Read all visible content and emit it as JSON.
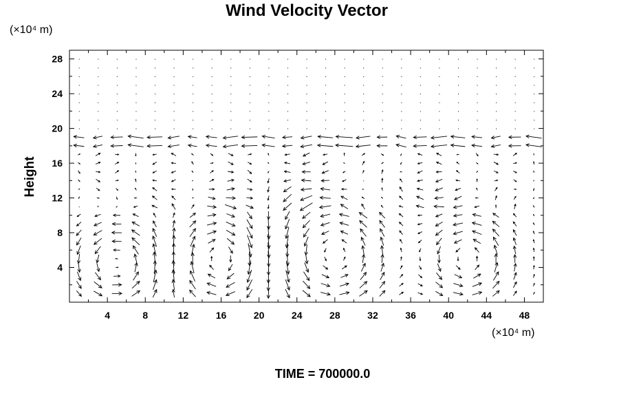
{
  "chart_data": {
    "type": "vector",
    "title": "Wind Velocity Vector",
    "ylabel": "Height",
    "xlabel": "",
    "x_unit_label": "(×10⁴ m)",
    "y_unit_label": "(×10⁴ m)",
    "footer": "TIME = 700000.0",
    "xlim": [
      0,
      50
    ],
    "ylim": [
      0,
      29
    ],
    "x_ticks": [
      4,
      8,
      12,
      16,
      20,
      24,
      28,
      32,
      36,
      40,
      44,
      48
    ],
    "y_ticks": [
      4,
      8,
      12,
      16,
      20,
      24,
      28
    ],
    "grid_dx": 2,
    "grid_dy": 1,
    "circulation_cells": [
      {
        "center_x": 5,
        "center_y": 4.5,
        "radius_x": 4.5,
        "radius_y": 4.5,
        "sense": 1
      },
      {
        "center_x": 16,
        "center_y": 5,
        "radius_x": 4.5,
        "radius_y": 5,
        "sense": -1
      },
      {
        "center_x": 28,
        "center_y": 5.5,
        "radius_x": 6,
        "radius_y": 6.5,
        "sense": 1
      },
      {
        "center_x": 42,
        "center_y": 5,
        "radius_x": 4.5,
        "radius_y": 5,
        "sense": 1
      }
    ],
    "upper_layer": {
      "y_min": 17.5,
      "y_max": 19.5,
      "flow": "westward"
    },
    "colors": {
      "line": "#000000",
      "background": "#ffffff"
    }
  }
}
